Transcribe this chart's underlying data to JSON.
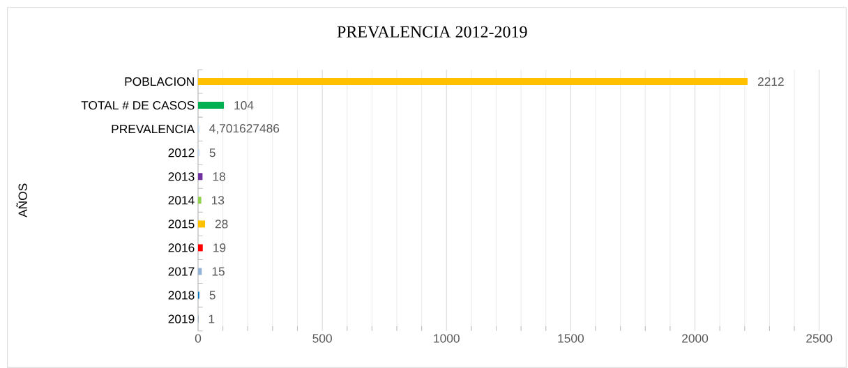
{
  "chart_data": {
    "type": "bar",
    "orientation": "horizontal",
    "title": "PREVALENCIA 2012-2019",
    "ylabel": "AÑOS",
    "categories": [
      "POBLACION",
      "TOTAL # DE CASOS",
      "PREVALENCIA",
      "2012",
      "2013",
      "2014",
      "2015",
      "2016",
      "2017",
      "2018",
      "2019"
    ],
    "values": [
      2212,
      104,
      4.701627486,
      5,
      18,
      13,
      28,
      19,
      15,
      5,
      1
    ],
    "value_labels": [
      "2212",
      "104",
      "4,701627486",
      "5",
      "18",
      "13",
      "28",
      "19",
      "15",
      "5",
      "1"
    ],
    "colors": [
      "#ffc000",
      "#00b050",
      "#bdd7ee",
      "#bdd7ee",
      "#7030a0",
      "#92d050",
      "#ffc000",
      "#ff0000",
      "#95b3d7",
      "#0070c0",
      "#2e75b6"
    ],
    "xlim": [
      0,
      2500
    ],
    "xticks": [
      0,
      500,
      1000,
      1500,
      2000,
      2500
    ],
    "grid": "x"
  }
}
